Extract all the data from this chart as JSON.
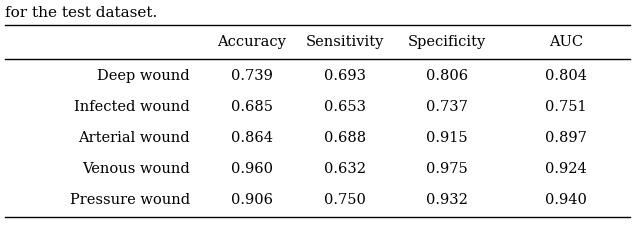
{
  "caption": "for the test dataset.",
  "columns": [
    "",
    "Accuracy",
    "Sensitivity",
    "Specificity",
    "AUC"
  ],
  "rows": [
    [
      "Deep wound",
      "0.739",
      "0.693",
      "0.806",
      "0.804"
    ],
    [
      "Infected wound",
      "0.685",
      "0.653",
      "0.737",
      "0.751"
    ],
    [
      "Arterial wound",
      "0.864",
      "0.688",
      "0.915",
      "0.897"
    ],
    [
      "Venous wound",
      "0.960",
      "0.632",
      "0.975",
      "0.924"
    ],
    [
      "Pressure wound",
      "0.906",
      "0.750",
      "0.932",
      "0.940"
    ]
  ],
  "background_color": "#ffffff",
  "text_color": "#000000",
  "font_size": 10.5,
  "caption_font_size": 11,
  "line_color": "#000000",
  "line_width": 1.0,
  "fig_width": 6.4,
  "fig_height": 2.26
}
